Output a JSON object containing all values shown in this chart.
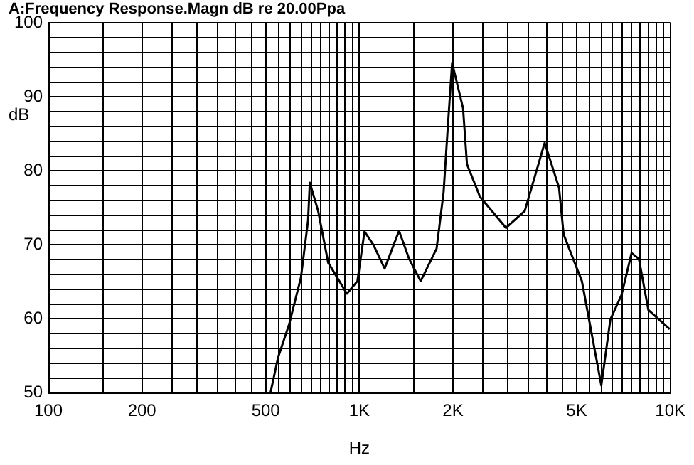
{
  "chart_data": {
    "type": "line",
    "title": "A:Frequency Response.Magn dB re 20.00Ppa",
    "xlabel": "Hz",
    "ylabel": "dB",
    "log": "x",
    "grid": true,
    "legend": false,
    "marker": "none",
    "line_style": "solid",
    "xlim": [
      100,
      10000
    ],
    "ylim": [
      50,
      100
    ],
    "xticks": [
      100,
      {
        "value": 150,
        "label": null
      },
      200,
      {
        "value": 250,
        "label": null
      },
      {
        "value": 300,
        "label": null
      },
      {
        "value": 350,
        "label": null
      },
      {
        "value": 400,
        "label": null
      },
      {
        "value": 450,
        "label": null
      },
      500,
      {
        "value": 550,
        "label": null
      },
      {
        "value": 600,
        "label": null
      },
      {
        "value": 650,
        "label": null
      },
      {
        "value": 700,
        "label": null
      },
      {
        "value": 750,
        "label": null
      },
      {
        "value": 800,
        "label": null
      },
      {
        "value": 850,
        "label": null
      },
      {
        "value": 900,
        "label": null
      },
      {
        "value": 950,
        "label": null
      },
      {
        "value": 1000,
        "label": "1K"
      },
      {
        "value": 1500,
        "label": null
      },
      {
        "value": 2000,
        "label": "2K"
      },
      {
        "value": 2500,
        "label": null
      },
      {
        "value": 3000,
        "label": null
      },
      {
        "value": 3500,
        "label": null
      },
      {
        "value": 4000,
        "label": null
      },
      {
        "value": 4500,
        "label": null
      },
      {
        "value": 5000,
        "label": "5K"
      },
      {
        "value": 5500,
        "label": null
      },
      {
        "value": 6000,
        "label": null
      },
      {
        "value": 6500,
        "label": null
      },
      {
        "value": 7000,
        "label": null
      },
      {
        "value": 7500,
        "label": null
      },
      {
        "value": 8000,
        "label": null
      },
      {
        "value": 8500,
        "label": null
      },
      {
        "value": 9000,
        "label": null
      },
      {
        "value": 9500,
        "label": null
      },
      {
        "value": 10000,
        "label": "10K"
      }
    ],
    "yticks": [
      50,
      {
        "value": 52,
        "label": null
      },
      {
        "value": 54,
        "label": null
      },
      {
        "value": 56,
        "label": null
      },
      {
        "value": 58,
        "label": null
      },
      60,
      {
        "value": 62,
        "label": null
      },
      {
        "value": 64,
        "label": null
      },
      {
        "value": 66,
        "label": null
      },
      {
        "value": 68,
        "label": null
      },
      70,
      {
        "value": 72,
        "label": null
      },
      {
        "value": 74,
        "label": null
      },
      {
        "value": 76,
        "label": null
      },
      {
        "value": 78,
        "label": null
      },
      80,
      {
        "value": 82,
        "label": null
      },
      {
        "value": 84,
        "label": null
      },
      {
        "value": 86,
        "label": null
      },
      {
        "value": 88,
        "label": null
      },
      90,
      {
        "value": 92,
        "label": null
      },
      {
        "value": 94,
        "label": null
      },
      {
        "value": 96,
        "label": null
      },
      {
        "value": 98,
        "label": null
      },
      100
    ],
    "series": [
      {
        "color": "#000000",
        "x": [
          518,
          548,
          595,
          649,
          684,
          693,
          737,
          794,
          912,
          986,
          1039,
          1110,
          1206,
          1342,
          1446,
          1575,
          1772,
          1866,
          1930,
          1988,
          2155,
          2219,
          2443,
          2963,
          3404,
          3945,
          4388,
          4540,
          5196,
          6000,
          6415,
          6966,
          7508,
          7927,
          8502,
          9955
        ],
        "values": [
          50,
          54.8,
          59.3,
          65.6,
          73.3,
          78.4,
          74.6,
          67.6,
          63.4,
          65.1,
          71.8,
          70.0,
          66.8,
          71.9,
          68.1,
          65.1,
          69.5,
          77.1,
          86.6,
          94.6,
          88.5,
          80.9,
          76.5,
          72.3,
          74.6,
          83.8,
          77.7,
          71.4,
          65.1,
          51.0,
          59.9,
          63.2,
          68.9,
          68.1,
          61.2,
          58.6
        ]
      }
    ]
  }
}
